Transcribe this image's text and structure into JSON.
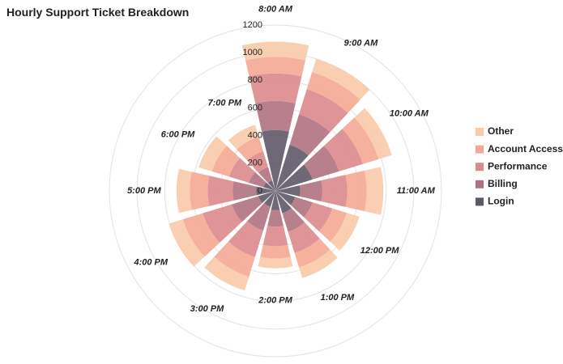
{
  "chart_data": {
    "type": "polar-stacked-bar",
    "title": "Hourly Support Ticket Breakdown",
    "categories": [
      "8:00 AM",
      "9:00 AM",
      "10:00 AM",
      "11:00 AM",
      "12:00 PM",
      "1:00 PM",
      "2:00 PM",
      "3:00 PM",
      "4:00 PM",
      "5:00 PM",
      "6:00 PM",
      "7:00 PM"
    ],
    "series": [
      {
        "name": "Login",
        "color": "#5f5868",
        "values": [
          440,
          350,
          280,
          180,
          150,
          170,
          140,
          120,
          130,
          140,
          90,
          80
        ]
      },
      {
        "name": "Billing",
        "color": "#b0727f",
        "values": [
          210,
          230,
          200,
          160,
          130,
          140,
          120,
          180,
          200,
          170,
          110,
          100
        ]
      },
      {
        "name": "Performance",
        "color": "#dc8a8c",
        "values": [
          200,
          190,
          180,
          180,
          150,
          160,
          140,
          200,
          220,
          180,
          150,
          120
        ]
      },
      {
        "name": "Account Access",
        "color": "#f5a894",
        "values": [
          120,
          130,
          120,
          140,
          110,
          110,
          90,
          150,
          150,
          130,
          130,
          110
        ]
      },
      {
        "name": "Other",
        "color": "#f9c9a8",
        "values": [
          110,
          100,
          100,
          120,
          95,
          80,
          70,
          105,
          105,
          95,
          100,
          90
        ]
      }
    ],
    "ylim": [
      0,
      1200
    ],
    "yticks": [
      0,
      200,
      400,
      600,
      800,
      1000,
      1200
    ],
    "grid": true,
    "legend": "right"
  }
}
